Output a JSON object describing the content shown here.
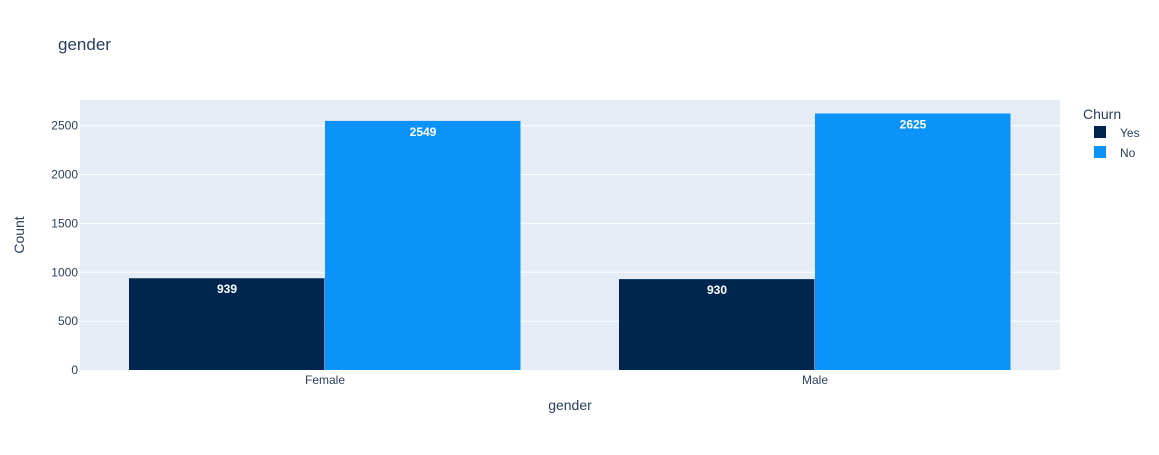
{
  "chart_data": {
    "type": "bar",
    "title": "gender",
    "xlabel": "gender",
    "ylabel": "Count",
    "categories": [
      "Female",
      "Male"
    ],
    "series": [
      {
        "name": "Yes",
        "values": [
          939,
          930
        ],
        "color": "#00264F"
      },
      {
        "name": "No",
        "values": [
          2549,
          2625
        ],
        "color": "#0B93FA"
      }
    ],
    "ylim": [
      0,
      2763
    ],
    "yticks": [
      0,
      500,
      1000,
      1500,
      2000,
      2500
    ],
    "grid": true,
    "legend": {
      "title": "Churn",
      "position": "right"
    },
    "plot_background": "#E5ECF6"
  }
}
